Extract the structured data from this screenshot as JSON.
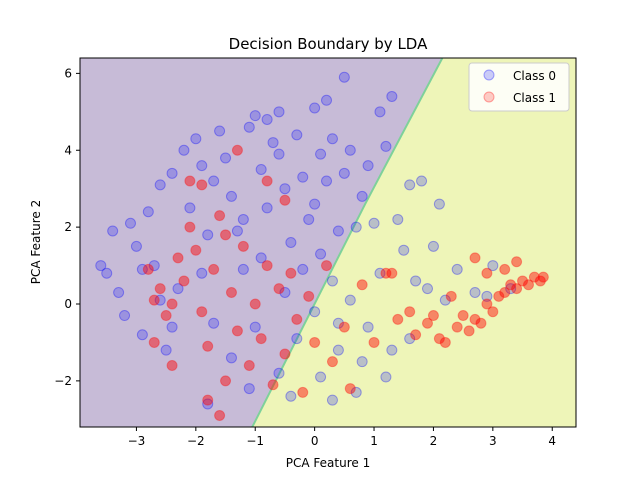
{
  "chart_data": {
    "type": "scatter",
    "title": "Decision Boundary by LDA",
    "xlabel": "PCA Feature 1",
    "ylabel": "PCA Feature 2",
    "xlim": [
      -3.95,
      4.4
    ],
    "ylim": [
      -3.2,
      6.4
    ],
    "xticks": [
      -3,
      -2,
      -1,
      0,
      1,
      2,
      3,
      4
    ],
    "yticks": [
      -2,
      0,
      2,
      4,
      6
    ],
    "xtick_labels": [
      "−3",
      "−2",
      "−1",
      "0",
      "1",
      "2",
      "3",
      "4"
    ],
    "ytick_labels": [
      "−2",
      "0",
      "2",
      "4",
      "6"
    ],
    "legend": {
      "placement": "top-right",
      "entries": [
        "Class 0",
        "Class 1"
      ]
    },
    "decision_boundary": {
      "line": [
        [
          -1.05,
          -3.2
        ],
        [
          0.85,
          2.6
        ],
        [
          2.15,
          6.4
        ]
      ],
      "regions": {
        "class_0": "left",
        "class_1": "right"
      }
    },
    "series": [
      {
        "name": "Class 0",
        "color": "#0000ff",
        "points": [
          [
            -3.4,
            1.9
          ],
          [
            -3.1,
            2.1
          ],
          [
            -3.5,
            0.8
          ],
          [
            -3.3,
            0.3
          ],
          [
            -3.0,
            1.5
          ],
          [
            -2.8,
            2.4
          ],
          [
            -2.9,
            -0.8
          ],
          [
            -3.6,
            1.0
          ],
          [
            -3.2,
            -0.3
          ],
          [
            -2.6,
            3.1
          ],
          [
            -2.4,
            3.4
          ],
          [
            -2.7,
            1.0
          ],
          [
            -2.5,
            -1.2
          ],
          [
            -2.2,
            4.0
          ],
          [
            -2.0,
            4.3
          ],
          [
            -1.9,
            3.6
          ],
          [
            -2.1,
            2.5
          ],
          [
            -1.8,
            1.8
          ],
          [
            -2.3,
            0.4
          ],
          [
            -1.7,
            -0.5
          ],
          [
            -1.6,
            4.5
          ],
          [
            -1.5,
            3.8
          ],
          [
            -1.4,
            2.8
          ],
          [
            -1.3,
            1.9
          ],
          [
            -1.2,
            0.9
          ],
          [
            -1.4,
            -1.4
          ],
          [
            -1.1,
            4.6
          ],
          [
            -1.0,
            4.9
          ],
          [
            -0.9,
            3.5
          ],
          [
            -0.8,
            2.5
          ],
          [
            -0.9,
            1.2
          ],
          [
            -1.0,
            -0.6
          ],
          [
            -0.7,
            4.2
          ],
          [
            -0.6,
            5.0
          ],
          [
            -0.5,
            3.0
          ],
          [
            -0.4,
            1.6
          ],
          [
            -0.5,
            0.3
          ],
          [
            -0.6,
            -1.8
          ],
          [
            -0.3,
            4.4
          ],
          [
            -0.2,
            3.3
          ],
          [
            -0.1,
            2.2
          ],
          [
            -0.2,
            0.9
          ],
          [
            -0.3,
            -0.9
          ],
          [
            0.0,
            5.1
          ],
          [
            0.1,
            3.9
          ],
          [
            0.0,
            2.6
          ],
          [
            0.1,
            1.3
          ],
          [
            0.0,
            -0.2
          ],
          [
            0.1,
            -1.9
          ],
          [
            0.3,
            4.3
          ],
          [
            0.2,
            3.2
          ],
          [
            0.4,
            1.9
          ],
          [
            0.3,
            0.6
          ],
          [
            0.4,
            -1.2
          ],
          [
            0.6,
            4.0
          ],
          [
            0.5,
            3.4
          ],
          [
            0.7,
            2.0
          ],
          [
            0.6,
            0.1
          ],
          [
            0.8,
            -1.5
          ],
          [
            0.9,
            3.6
          ],
          [
            1.0,
            2.1
          ],
          [
            1.1,
            0.8
          ],
          [
            0.9,
            -0.6
          ],
          [
            1.2,
            -1.9
          ],
          [
            1.4,
            2.2
          ],
          [
            1.5,
            1.4
          ],
          [
            1.7,
            0.6
          ],
          [
            1.6,
            -0.9
          ],
          [
            1.9,
            0.4
          ],
          [
            2.1,
            2.6
          ],
          [
            1.3,
            -1.2
          ],
          [
            0.7,
            -2.3
          ],
          [
            0.3,
            -2.5
          ],
          [
            -0.4,
            -2.4
          ],
          [
            -1.1,
            -2.2
          ],
          [
            -1.8,
            -2.6
          ],
          [
            1.1,
            5.0
          ],
          [
            0.5,
            5.9
          ],
          [
            1.2,
            4.1
          ],
          [
            1.8,
            3.2
          ],
          [
            2.0,
            1.5
          ],
          [
            2.4,
            0.9
          ],
          [
            2.7,
            0.3
          ],
          [
            3.0,
            1.0
          ],
          [
            2.9,
            0.2
          ],
          [
            3.3,
            0.4
          ],
          [
            1.3,
            5.4
          ],
          [
            -2.6,
            0.1
          ],
          [
            -2.9,
            0.9
          ],
          [
            -1.7,
            3.2
          ],
          [
            -0.8,
            4.8
          ],
          [
            0.2,
            5.3
          ],
          [
            -2.4,
            -0.6
          ],
          [
            -1.9,
            0.8
          ],
          [
            -1.2,
            2.2
          ],
          [
            -0.6,
            3.9
          ],
          [
            0.8,
            2.8
          ],
          [
            1.6,
            3.1
          ],
          [
            2.2,
            0.1
          ],
          [
            0.4,
            -0.5
          ]
        ]
      },
      {
        "name": "Class 1",
        "color": "#ff0000",
        "points": [
          [
            -2.8,
            0.9
          ],
          [
            -2.6,
            0.4
          ],
          [
            -2.5,
            -0.3
          ],
          [
            -2.7,
            -1.0
          ],
          [
            -2.3,
            1.2
          ],
          [
            -2.2,
            0.6
          ],
          [
            -2.4,
            -1.6
          ],
          [
            -2.1,
            2.0
          ],
          [
            -2.0,
            1.4
          ],
          [
            -1.9,
            -0.2
          ],
          [
            -1.8,
            -1.1
          ],
          [
            -1.7,
            0.9
          ],
          [
            -1.6,
            2.3
          ],
          [
            -1.9,
            3.1
          ],
          [
            -1.5,
            -2.0
          ],
          [
            -1.4,
            0.3
          ],
          [
            -1.3,
            -0.7
          ],
          [
            -1.2,
            1.5
          ],
          [
            -1.1,
            -1.6
          ],
          [
            -1.0,
            0.0
          ],
          [
            -0.9,
            -0.9
          ],
          [
            -0.8,
            1.0
          ],
          [
            -0.7,
            -2.1
          ],
          [
            -0.6,
            0.4
          ],
          [
            -0.5,
            -1.3
          ],
          [
            -0.4,
            0.8
          ],
          [
            -0.3,
            -0.4
          ],
          [
            -0.2,
            -2.3
          ],
          [
            -0.1,
            0.2
          ],
          [
            0.0,
            -1.0
          ],
          [
            0.2,
            1.0
          ],
          [
            0.3,
            -1.5
          ],
          [
            0.5,
            -0.6
          ],
          [
            0.6,
            -2.2
          ],
          [
            0.8,
            0.5
          ],
          [
            1.0,
            -1.0
          ],
          [
            1.2,
            0.8
          ],
          [
            1.4,
            -0.4
          ],
          [
            1.6,
            -0.2
          ],
          [
            1.7,
            -0.8
          ],
          [
            1.9,
            -0.5
          ],
          [
            2.0,
            -0.3
          ],
          [
            2.1,
            -0.9
          ],
          [
            2.3,
            0.2
          ],
          [
            2.4,
            -0.6
          ],
          [
            2.5,
            -0.3
          ],
          [
            2.6,
            -0.7
          ],
          [
            2.7,
            -0.4
          ],
          [
            2.8,
            -0.5
          ],
          [
            2.9,
            0.0
          ],
          [
            3.0,
            -0.2
          ],
          [
            3.1,
            0.2
          ],
          [
            3.2,
            0.3
          ],
          [
            3.3,
            0.5
          ],
          [
            3.4,
            0.4
          ],
          [
            3.5,
            0.6
          ],
          [
            3.6,
            0.5
          ],
          [
            3.7,
            0.7
          ],
          [
            3.8,
            0.6
          ],
          [
            3.85,
            0.7
          ],
          [
            3.2,
            0.9
          ],
          [
            3.4,
            1.1
          ],
          [
            2.7,
            1.2
          ],
          [
            2.9,
            0.8
          ],
          [
            -2.1,
            3.2
          ],
          [
            -1.8,
            -2.5
          ],
          [
            -1.6,
            -2.9
          ],
          [
            -2.4,
            0.0
          ],
          [
            -0.5,
            2.7
          ],
          [
            -0.8,
            3.2
          ],
          [
            -1.3,
            4.0
          ],
          [
            1.3,
            0.8
          ],
          [
            2.2,
            -1.0
          ],
          [
            -2.7,
            0.1
          ],
          [
            -1.5,
            1.8
          ]
        ]
      }
    ]
  }
}
